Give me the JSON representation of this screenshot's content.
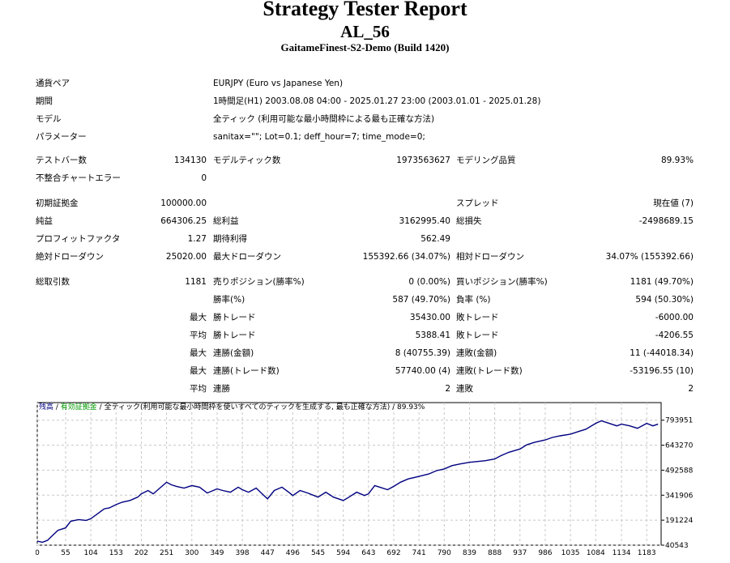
{
  "report": {
    "title": "Strategy Tester Report",
    "expert": "AL_56",
    "server": "GaitameFinest-S2-Demo (Build 1420)"
  },
  "settings": [
    {
      "label": "通貨ペア",
      "value": "EURJPY (Euro vs Japanese Yen)"
    },
    {
      "label": "期間",
      "value": "1時間足(H1) 2003.08.08 04:00 - 2025.01.27 23:00 (2003.01.01 - 2025.01.28)"
    },
    {
      "label": "モデル",
      "value": "全ティック (利用可能な最小時間枠による最も正確な方法)"
    },
    {
      "label": "パラメーター",
      "value": "sanitax=\"\"; Lot=0.1; deff_hour=7; time_mode=0;"
    }
  ],
  "stats": {
    "bars_label": "テストバー数",
    "bars": "134130",
    "ticks_label": "モデルティック数",
    "ticks": "1973563627",
    "quality_label": "モデリング品質",
    "quality": "89.93%",
    "mismatch_label": "不整合チャートエラー",
    "mismatch": "0",
    "deposit_label": "初期証拠金",
    "deposit": "100000.00",
    "spread_label": "スプレッド",
    "spread": "現在値 (7)",
    "net_label": "純益",
    "net": "664306.25",
    "gross_profit_label": "総利益",
    "gross_profit": "3162995.40",
    "gross_loss_label": "総損失",
    "gross_loss": "-2498689.15",
    "pf_label": "プロフィットファクタ",
    "pf": "1.27",
    "expected_label": "期待利得",
    "expected": "562.49",
    "abs_dd_label": "絶対ドローダウン",
    "abs_dd": "25020.00",
    "max_dd_label": "最大ドローダウン",
    "max_dd": "155392.66 (34.07%)",
    "rel_dd_label": "相対ドローダウン",
    "rel_dd": "34.07% (155392.66)",
    "total_trades_label": "総取引数",
    "total_trades": "1181",
    "short_label": "売りポジション(勝率%)",
    "short": "0 (0.00%)",
    "long_label": "買いポジション(勝率%)",
    "long": "1181 (49.70%)",
    "win_rate_label": "勝率(%)",
    "win_rate": "587 (49.70%)",
    "loss_rate_label": "負率 (%)",
    "loss_rate": "594 (50.30%)",
    "max_word": "最大",
    "avg_word": "平均",
    "largest_win_label": "勝トレード",
    "largest_win": "35430.00",
    "largest_loss_label": "敗トレード",
    "largest_loss": "-6000.00",
    "avg_win_label": "勝トレード",
    "avg_win": "5388.41",
    "avg_loss_label": "敗トレード",
    "avg_loss": "-4206.55",
    "max_consec_wins_label": "連勝(金額)",
    "max_consec_wins": "8 (40755.39)",
    "max_consec_losses_label": "連敗(金額)",
    "max_consec_losses": "11 (-44018.34)",
    "max_consec_profit_label": "連勝(トレード数)",
    "max_consec_profit": "57740.00 (4)",
    "max_consec_loss_label": "連敗(トレード数)",
    "max_consec_loss": "-53196.55 (10)",
    "avg_consec_wins_label": "連勝",
    "avg_consec_wins": "2",
    "avg_consec_losses_label": "連敗",
    "avg_consec_losses": "2"
  },
  "chart_legend": {
    "balance": "残高",
    "sep1": " / ",
    "equity": "有効証拠金",
    "sep2": " / ",
    "model": "全ティック(利用可能な最小時間枠を使いすべてのティックを生成する, 最も正確な方法)",
    "quality": " / 89.93%"
  },
  "chart_data": {
    "type": "line",
    "series": [
      {
        "name": "残高",
        "color": "#000080",
        "x": [
          0,
          10,
          20,
          30,
          40,
          55,
          65,
          80,
          95,
          104,
          115,
          130,
          140,
          153,
          165,
          180,
          195,
          202,
          215,
          225,
          240,
          251,
          260,
          270,
          285,
          300,
          315,
          330,
          349,
          360,
          375,
          390,
          398,
          410,
          425,
          440,
          447,
          460,
          475,
          490,
          496,
          510,
          525,
          545,
          560,
          575,
          594,
          605,
          620,
          635,
          643,
          655,
          665,
          680,
          692,
          705,
          720,
          741,
          760,
          775,
          790,
          805,
          820,
          839,
          855,
          870,
          888,
          900,
          915,
          937,
          950,
          965,
          986,
          1000,
          1015,
          1035,
          1050,
          1065,
          1084,
          1095,
          1110,
          1125,
          1134,
          1150,
          1165,
          1183,
          1195,
          1205
        ],
        "y": [
          65000,
          58000,
          70000,
          100000,
          130000,
          145000,
          185000,
          195000,
          190000,
          200000,
          225000,
          260000,
          265000,
          285000,
          300000,
          310000,
          330000,
          350000,
          370000,
          350000,
          390000,
          420000,
          405000,
          395000,
          385000,
          400000,
          390000,
          355000,
          380000,
          370000,
          360000,
          390000,
          375000,
          360000,
          385000,
          340000,
          320000,
          370000,
          390000,
          355000,
          340000,
          370000,
          355000,
          330000,
          360000,
          330000,
          310000,
          330000,
          360000,
          340000,
          350000,
          400000,
          390000,
          375000,
          395000,
          420000,
          440000,
          455000,
          470000,
          490000,
          500000,
          520000,
          530000,
          540000,
          545000,
          550000,
          560000,
          580000,
          600000,
          620000,
          645000,
          660000,
          675000,
          690000,
          700000,
          710000,
          725000,
          740000,
          775000,
          790000,
          775000,
          760000,
          770000,
          760000,
          745000,
          775000,
          760000,
          770000
        ]
      }
    ],
    "xlim": [
      0,
      1211
    ],
    "ylim": [
      40543,
      900000
    ],
    "x_ticks": [
      "0",
      "55",
      "104",
      "153",
      "202",
      "251",
      "300",
      "349",
      "398",
      "447",
      "496",
      "545",
      "594",
      "643",
      "692",
      "741",
      "790",
      "839",
      "888",
      "937",
      "986",
      "1035",
      "1084",
      "1134",
      "1183"
    ],
    "x_tick_values": [
      0,
      55,
      104,
      153,
      202,
      251,
      300,
      349,
      398,
      447,
      496,
      545,
      594,
      643,
      692,
      741,
      790,
      839,
      888,
      937,
      986,
      1035,
      1084,
      1134,
      1183
    ],
    "y_ticks": [
      "793951",
      "643270",
      "492588",
      "341906",
      "191224",
      "40543"
    ],
    "y_tick_values": [
      793951,
      643270,
      492588,
      341906,
      191224,
      40543
    ],
    "grid": true
  }
}
